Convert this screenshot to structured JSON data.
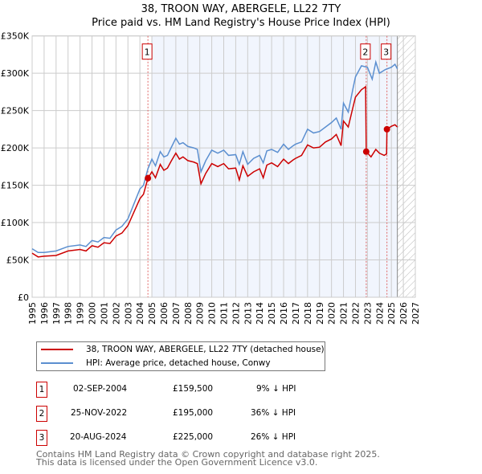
{
  "chart_data": {
    "type": "line",
    "title": "38, TROON WAY, ABERGELE, LL22 7TY",
    "subtitle": "Price paid vs. HM Land Registry's House Price Index (HPI)",
    "xlim": [
      1995,
      2027
    ],
    "ylim": [
      0,
      350000
    ],
    "x_ticks": [
      "1995",
      "1996",
      "1997",
      "1998",
      "1999",
      "2000",
      "2001",
      "2002",
      "2003",
      "2004",
      "2005",
      "2006",
      "2007",
      "2008",
      "2009",
      "2010",
      "2011",
      "2012",
      "2013",
      "2014",
      "2015",
      "2016",
      "2017",
      "2018",
      "2019",
      "2020",
      "2021",
      "2022",
      "2023",
      "2024",
      "2025",
      "2026",
      "2027"
    ],
    "y_ticks": [
      {
        "v": 0,
        "label": "£0"
      },
      {
        "v": 50000,
        "label": "£50K"
      },
      {
        "v": 100000,
        "label": "£100K"
      },
      {
        "v": 150000,
        "label": "£150K"
      },
      {
        "v": 200000,
        "label": "£200K"
      },
      {
        "v": 250000,
        "label": "£250K"
      },
      {
        "v": 300000,
        "label": "£300K"
      },
      {
        "v": 350000,
        "label": "£350K"
      }
    ],
    "grid": true,
    "shaded_range": [
      2005,
      2025.5
    ],
    "hatched_from": 2025.5,
    "series": [
      {
        "name": "HPI: Average price, detached house, Conwy",
        "color": "#5b8fd0",
        "x": [
          1995,
          1995.5,
          1996,
          1997,
          1998,
          1999,
          1999.5,
          2000,
          2000.5,
          2001,
          2001.5,
          2002,
          2002.5,
          2003,
          2003.5,
          2004,
          2004.3,
          2004.67,
          2005,
          2005.3,
          2005.7,
          2006,
          2006.3,
          2006.6,
          2007,
          2007.3,
          2007.6,
          2008,
          2008.5,
          2008.8,
          2009.1,
          2009.5,
          2010,
          2010.5,
          2011,
          2011.4,
          2012,
          2012.3,
          2012.6,
          2013,
          2013.5,
          2014,
          2014.3,
          2014.6,
          2015,
          2015.5,
          2016,
          2016.4,
          2016.8,
          2017,
          2017.5,
          2018,
          2018.5,
          2019,
          2019.5,
          2020,
          2020.4,
          2020.8,
          2021,
          2021.4,
          2021.8,
          2022,
          2022.5,
          2023,
          2023.4,
          2023.7,
          2024,
          2024.5,
          2025,
          2025.3,
          2025.5
        ],
        "y": [
          65000,
          60000,
          60000,
          62000,
          68000,
          70000,
          68000,
          76000,
          74000,
          80000,
          79000,
          90000,
          95000,
          105000,
          125000,
          145000,
          150000,
          172000,
          185000,
          176000,
          195000,
          188000,
          190000,
          200000,
          213000,
          205000,
          207000,
          202000,
          200000,
          198000,
          168000,
          183000,
          197000,
          193000,
          197000,
          190000,
          191000,
          178000,
          195000,
          178000,
          186000,
          190000,
          180000,
          196000,
          198000,
          194000,
          205000,
          198000,
          203000,
          205000,
          208000,
          225000,
          220000,
          222000,
          228000,
          234000,
          240000,
          225000,
          260000,
          248000,
          280000,
          295000,
          310000,
          308000,
          292000,
          315000,
          300000,
          305000,
          308000,
          312000,
          306000
        ]
      },
      {
        "name": "38, TROON WAY, ABERGELE, LL22 7TY (detached house)",
        "color": "#cc0000",
        "x": [
          1995,
          1995.5,
          1996,
          1997,
          1998,
          1999,
          1999.5,
          2000,
          2000.5,
          2001,
          2001.5,
          2002,
          2002.5,
          2003,
          2003.5,
          2004,
          2004.3,
          2004.67,
          2005,
          2005.3,
          2005.7,
          2006,
          2006.3,
          2006.6,
          2007,
          2007.3,
          2007.6,
          2008,
          2008.5,
          2008.8,
          2009.1,
          2009.5,
          2010,
          2010.5,
          2011,
          2011.4,
          2012,
          2012.3,
          2012.6,
          2013,
          2013.5,
          2014,
          2014.3,
          2014.6,
          2015,
          2015.5,
          2016,
          2016.4,
          2016.8,
          2017,
          2017.5,
          2018,
          2018.5,
          2019,
          2019.5,
          2020,
          2020.4,
          2020.8,
          2021,
          2021.4,
          2021.8,
          2022,
          2022.5,
          2022.85,
          2022.9,
          2023.3,
          2023.7,
          2024,
          2024.4,
          2024.6,
          2024.63,
          2025,
          2025.3,
          2025.5
        ],
        "y": [
          59000,
          54000,
          55000,
          56000,
          62000,
          64000,
          62000,
          69000,
          67000,
          73000,
          72000,
          82000,
          86000,
          96000,
          114000,
          132000,
          138000,
          159500,
          168000,
          160000,
          178000,
          170000,
          173000,
          182000,
          193000,
          185000,
          188000,
          183000,
          181000,
          179000,
          152000,
          166000,
          179000,
          175000,
          179000,
          172000,
          173000,
          157000,
          176000,
          162000,
          168000,
          172000,
          160000,
          177000,
          180000,
          175000,
          185000,
          179000,
          184000,
          186000,
          190000,
          204000,
          200000,
          201000,
          208000,
          212000,
          218000,
          203000,
          236000,
          228000,
          255000,
          268000,
          278000,
          282000,
          195000,
          188000,
          198000,
          193000,
          190000,
          192000,
          225000,
          229000,
          231000,
          228000
        ]
      }
    ],
    "sales": [
      {
        "n": "1",
        "x": 2004.67,
        "y": 159500
      },
      {
        "n": "2",
        "x": 2022.9,
        "y": 195000
      },
      {
        "n": "3",
        "x": 2024.63,
        "y": 225000
      }
    ]
  },
  "legend": {
    "property": "38, TROON WAY, ABERGELE, LL22 7TY (detached house)",
    "hpi": "HPI: Average price, detached house, Conwy"
  },
  "transactions": [
    {
      "n": "1",
      "date": "02-SEP-2004",
      "price": "£159,500",
      "diff": "9% ↓ HPI"
    },
    {
      "n": "2",
      "date": "25-NOV-2022",
      "price": "£195,000",
      "diff": "36% ↓ HPI"
    },
    {
      "n": "3",
      "date": "20-AUG-2024",
      "price": "£225,000",
      "diff": "26% ↓ HPI"
    }
  ],
  "footer": {
    "line1": "Contains HM Land Registry data © Crown copyright and database right 2025.",
    "line2": "This data is licensed under the Open Government Licence v3.0."
  }
}
